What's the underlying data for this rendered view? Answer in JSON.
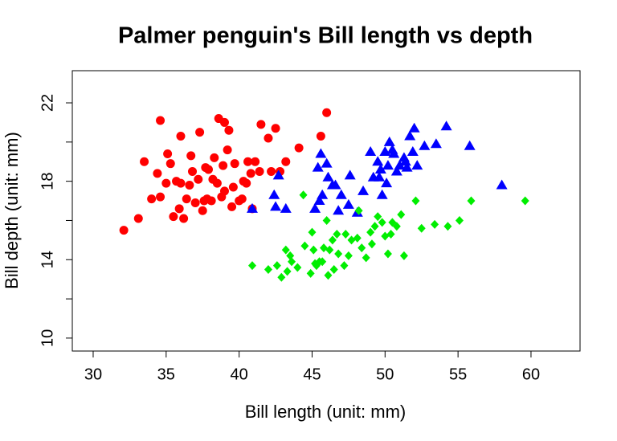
{
  "chart_data": {
    "type": "scatter",
    "title": "Palmer penguin's Bill length vs depth",
    "x_label": "Bill length (unit: mm)",
    "y_label": "Bill depth (unit: mm)",
    "xlim": [
      28.57,
      63.36
    ],
    "ylim": [
      9.34,
      23.64
    ],
    "xticks": [
      30,
      35,
      40,
      45,
      50,
      55,
      60
    ],
    "yticks": [
      10,
      14,
      18,
      22
    ],
    "y_minor_ticks": [
      12,
      16,
      20
    ],
    "series": [
      {
        "color": "#ff0000",
        "marker": "circle",
        "x": [
          32.1,
          33.1,
          33.5,
          34.0,
          34.4,
          34.6,
          34.6,
          35.0,
          35.1,
          35.3,
          35.5,
          35.7,
          35.9,
          36.0,
          36.2,
          36.4,
          36.6,
          36.7,
          36.8,
          37.0,
          37.2,
          37.3,
          37.6,
          37.7,
          37.8,
          37.9,
          38.1,
          38.2,
          38.3,
          38.5,
          38.6,
          38.8,
          38.9,
          39.0,
          39.2,
          39.3,
          39.5,
          39.6,
          39.7,
          40.0,
          40.2,
          40.3,
          40.5,
          40.6,
          40.8,
          41.1,
          41.4,
          41.5,
          42.0,
          42.2,
          42.5,
          42.8,
          43.2,
          44.1,
          45.6,
          46.0,
          39.0,
          36.0,
          40.9,
          37.5
        ],
        "values": [
          15.5,
          16.1,
          19.0,
          17.1,
          18.4,
          21.1,
          17.2,
          17.9,
          19.4,
          18.9,
          16.2,
          18.0,
          16.6,
          17.9,
          16.1,
          17.1,
          17.8,
          19.3,
          18.5,
          16.9,
          18.1,
          20.5,
          17.0,
          18.7,
          17.1,
          18.6,
          17.0,
          18.1,
          19.2,
          17.9,
          21.2,
          17.2,
          18.8,
          17.5,
          19.6,
          20.6,
          16.7,
          17.7,
          18.9,
          17.0,
          17.1,
          18.0,
          17.9,
          19.0,
          18.4,
          19.0,
          18.5,
          20.9,
          20.2,
          18.5,
          20.7,
          18.5,
          19.0,
          19.7,
          20.3,
          21.5,
          21.0,
          20.3,
          16.6,
          16.5
        ]
      },
      {
        "color": "#0000ff",
        "marker": "triangle",
        "x": [
          40.9,
          42.4,
          42.5,
          43.2,
          42.7,
          45.2,
          45.4,
          45.5,
          45.6,
          45.7,
          46.1,
          46.4,
          46.6,
          46.8,
          47.0,
          47.5,
          47.6,
          48.1,
          49.0,
          49.2,
          49.5,
          49.6,
          49.7,
          49.8,
          50.0,
          50.1,
          50.2,
          50.3,
          50.5,
          50.6,
          50.8,
          51.0,
          51.3,
          51.4,
          51.5,
          51.7,
          51.9,
          52.0,
          52.2,
          52.7,
          53.5,
          54.2,
          55.8,
          58.0,
          46.0,
          48.5
        ],
        "values": [
          16.6,
          17.3,
          16.7,
          16.6,
          18.3,
          16.6,
          18.7,
          17.0,
          19.4,
          17.3,
          18.2,
          17.8,
          17.8,
          16.5,
          17.3,
          16.8,
          18.3,
          16.4,
          19.5,
          18.2,
          19.0,
          18.2,
          18.6,
          17.3,
          19.5,
          17.9,
          18.8,
          20.0,
          19.6,
          19.4,
          18.5,
          18.8,
          19.2,
          19.0,
          18.7,
          20.3,
          19.5,
          20.7,
          18.8,
          19.8,
          19.9,
          20.8,
          19.8,
          17.8,
          18.9,
          17.5
        ]
      },
      {
        "color": "#00ee00",
        "marker": "diamond",
        "x": [
          40.9,
          42.0,
          42.6,
          42.9,
          43.2,
          43.3,
          43.5,
          43.6,
          44.0,
          44.4,
          44.5,
          44.9,
          45.1,
          45.2,
          45.3,
          45.5,
          45.7,
          45.8,
          46.1,
          46.2,
          46.4,
          46.5,
          46.7,
          46.8,
          47.2,
          47.3,
          47.5,
          47.7,
          48.1,
          48.4,
          48.7,
          49.0,
          49.1,
          49.3,
          49.5,
          49.8,
          50.0,
          50.2,
          50.4,
          50.5,
          50.8,
          51.1,
          51.3,
          52.1,
          52.5,
          53.4,
          54.3,
          55.1,
          55.9,
          59.6,
          46.0,
          48.2,
          45.0
        ],
        "values": [
          13.7,
          13.5,
          13.7,
          13.1,
          14.5,
          13.4,
          14.2,
          13.9,
          13.6,
          17.3,
          14.7,
          13.3,
          14.5,
          13.8,
          13.7,
          13.9,
          13.9,
          14.6,
          13.2,
          14.5,
          15.0,
          13.5,
          15.3,
          14.3,
          13.7,
          15.3,
          14.2,
          15.0,
          15.1,
          14.6,
          14.1,
          15.4,
          14.8,
          15.7,
          16.2,
          15.9,
          15.2,
          14.3,
          15.3,
          15.9,
          15.7,
          16.3,
          14.2,
          17.0,
          15.6,
          15.8,
          15.7,
          16.0,
          17.0,
          17.0,
          16.0,
          16.5,
          15.4
        ]
      }
    ]
  }
}
